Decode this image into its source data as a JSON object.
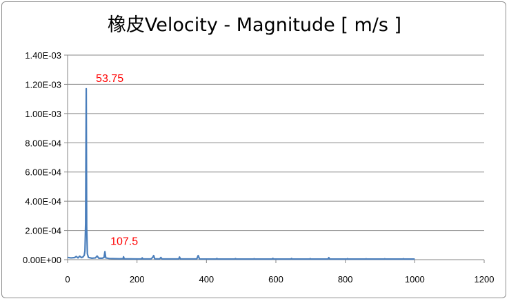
{
  "chart_data": {
    "type": "line",
    "title": "橡皮Velocity - Magnitude [ m/s ]",
    "xlabel": "",
    "ylabel": "",
    "xlim": [
      0,
      1200
    ],
    "ylim": [
      0,
      0.0014
    ],
    "x_ticks": [
      0,
      200,
      400,
      600,
      800,
      1000,
      1200
    ],
    "x_tick_labels": [
      "0",
      "200",
      "400",
      "600",
      "800",
      "1000",
      "1200"
    ],
    "y_ticks": [
      0,
      0.0002,
      0.0004,
      0.0006,
      0.0008,
      0.001,
      0.0012,
      0.0014
    ],
    "y_tick_labels": [
      "0.00E+00",
      "2.00E-04",
      "4.00E-04",
      "6.00E-04",
      "8.00E-04",
      "1.00E-03",
      "1.20E-03",
      "1.40E-03"
    ],
    "grid": "horizontal",
    "legend": "none",
    "series_color": "#4a7ebb",
    "annotation_color": "#ff0000",
    "series": [
      {
        "points": [
          [
            0,
            1.5e-05
          ],
          [
            10,
            1.2e-05
          ],
          [
            20,
            1.4e-05
          ],
          [
            25,
            2.2e-05
          ],
          [
            30,
            1.2e-05
          ],
          [
            35,
            2.4e-05
          ],
          [
            40,
            1.4e-05
          ],
          [
            44,
            1.8e-05
          ],
          [
            48,
            3e-05
          ],
          [
            50,
            6e-05
          ],
          [
            52,
            0.00025
          ],
          [
            53.75,
            0.00117
          ],
          [
            55,
            0.00022
          ],
          [
            57,
            4e-05
          ],
          [
            60,
            1.5e-05
          ],
          [
            70,
            1e-05
          ],
          [
            80,
            1.2e-05
          ],
          [
            85,
            2.5e-05
          ],
          [
            90,
            1e-05
          ],
          [
            100,
            1e-05
          ],
          [
            105,
            1.5e-05
          ],
          [
            107.5,
            5.5e-05
          ],
          [
            110,
            1.2e-05
          ],
          [
            120,
            8e-06
          ],
          [
            150,
            6e-06
          ],
          [
            160,
            7e-06
          ],
          [
            161.25,
            2e-05
          ],
          [
            163,
            6e-06
          ],
          [
            200,
            5e-06
          ],
          [
            213,
            5e-06
          ],
          [
            215,
            1.2e-05
          ],
          [
            217,
            5e-06
          ],
          [
            240,
            5e-06
          ],
          [
            245,
            1.5e-05
          ],
          [
            248,
            2.8e-05
          ],
          [
            251,
            6e-06
          ],
          [
            265,
            5e-06
          ],
          [
            268.75,
            1.5e-05
          ],
          [
            272,
            5e-06
          ],
          [
            320,
            5e-06
          ],
          [
            322.5,
            1.8e-05
          ],
          [
            325,
            5e-06
          ],
          [
            372,
            5e-06
          ],
          [
            376.25,
            2.8e-05
          ],
          [
            380,
            5e-06
          ],
          [
            427,
            4e-06
          ],
          [
            430,
            8e-06
          ],
          [
            433,
            4e-06
          ],
          [
            481,
            4e-06
          ],
          [
            483.75,
            7e-06
          ],
          [
            486,
            4e-06
          ],
          [
            535,
            4e-06
          ],
          [
            537.5,
            6e-06
          ],
          [
            540,
            4e-06
          ],
          [
            589,
            4e-06
          ],
          [
            591.25,
            9e-06
          ],
          [
            594,
            4e-06
          ],
          [
            643,
            4e-06
          ],
          [
            645,
            8e-06
          ],
          [
            648,
            4e-06
          ],
          [
            697,
            4e-06
          ],
          [
            698.75,
            7e-06
          ],
          [
            701,
            4e-06
          ],
          [
            750,
            4e-06
          ],
          [
            752.5,
            1.4e-05
          ],
          [
            755,
            4e-06
          ],
          [
            805,
            4e-06
          ],
          [
            806.25,
            7e-06
          ],
          [
            808,
            4e-06
          ],
          [
            858,
            4e-06
          ],
          [
            860,
            6e-06
          ],
          [
            862,
            4e-06
          ],
          [
            912,
            4e-06
          ],
          [
            913.75,
            6e-06
          ],
          [
            916,
            4e-06
          ],
          [
            965,
            4e-06
          ],
          [
            967.5,
            6e-06
          ],
          [
            970,
            4e-06
          ],
          [
            1000,
            4e-06
          ]
        ]
      }
    ],
    "annotations": [
      {
        "text": "53.75",
        "x": 53.75,
        "y": 0.00117
      },
      {
        "text": "107.5",
        "x": 107.5,
        "y": 5.5e-05
      }
    ]
  }
}
